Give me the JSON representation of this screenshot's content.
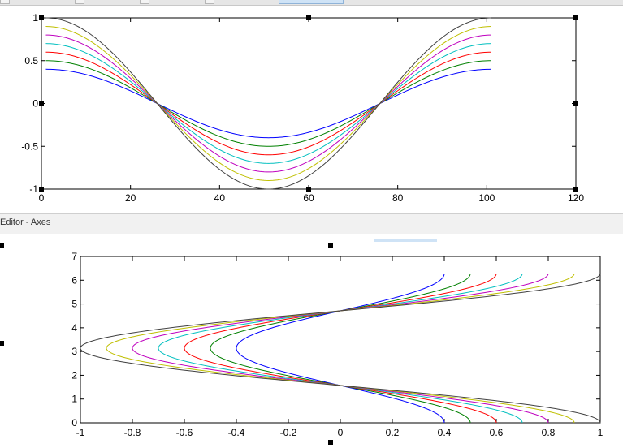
{
  "panel": {
    "section_title": "Editor - Axes"
  },
  "chart_data": [
    {
      "type": "line",
      "xlim": [
        0,
        120
      ],
      "ylim": [
        -1,
        1
      ],
      "xticks": [
        "0",
        "20",
        "40",
        "60",
        "80",
        "100",
        "120"
      ],
      "yticks": [
        "-1",
        "-0.5",
        "0",
        "0.5",
        "1"
      ],
      "grid": false,
      "x": [
        1,
        101
      ],
      "series": [
        {
          "amplitude": 0.4,
          "color": "#0000ff"
        },
        {
          "amplitude": 0.5,
          "color": "#008000"
        },
        {
          "amplitude": 0.6,
          "color": "#ff0000"
        },
        {
          "amplitude": 0.7,
          "color": "#00bfbf"
        },
        {
          "amplitude": 0.8,
          "color": "#bf00bf"
        },
        {
          "amplitude": 0.9,
          "color": "#bfbf00"
        },
        {
          "amplitude": 1.0,
          "color": "#404040"
        }
      ]
    },
    {
      "type": "line",
      "xlim": [
        -1,
        1
      ],
      "ylim": [
        0,
        7
      ],
      "xticks": [
        "-1",
        "-0.8",
        "-0.6",
        "-0.4",
        "-0.2",
        "0",
        "0.2",
        "0.4",
        "0.6",
        "0.8",
        "1"
      ],
      "yticks": [
        "0",
        "1",
        "2",
        "3",
        "4",
        "5",
        "6",
        "7"
      ],
      "grid": false,
      "y_range": [
        0,
        6.28
      ],
      "series": [
        {
          "amplitude": 0.4,
          "color": "#0000ff"
        },
        {
          "amplitude": 0.5,
          "color": "#008000"
        },
        {
          "amplitude": 0.6,
          "color": "#ff0000"
        },
        {
          "amplitude": 0.7,
          "color": "#00bfbf"
        },
        {
          "amplitude": 0.8,
          "color": "#bf00bf"
        },
        {
          "amplitude": 0.9,
          "color": "#bfbf00"
        },
        {
          "amplitude": 1.0,
          "color": "#404040"
        }
      ]
    }
  ]
}
